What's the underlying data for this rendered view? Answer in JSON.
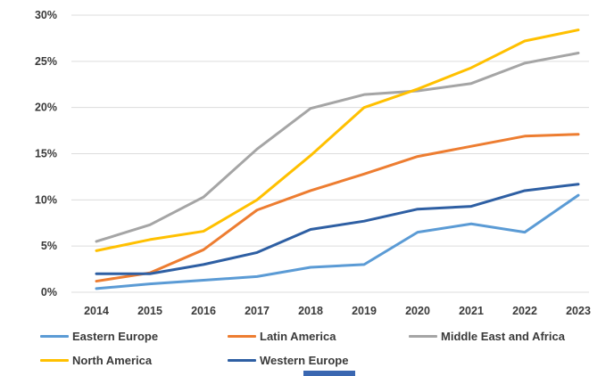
{
  "chart_data": {
    "type": "line",
    "x_labels": [
      "2014",
      "2015",
      "2016",
      "2017",
      "2018",
      "2019",
      "2020",
      "2021",
      "2022",
      "2023"
    ],
    "ylim": [
      0,
      30
    ],
    "ytick_step": 5,
    "ytick_labels": [
      "0%",
      "5%",
      "10%",
      "15%",
      "20%",
      "25%",
      "30%"
    ],
    "grid": true,
    "legend_position": "bottom",
    "series": [
      {
        "name": "Eastern Europe",
        "color": "#5B9BD5",
        "values": [
          0.4,
          0.9,
          1.3,
          1.7,
          2.7,
          3.0,
          6.5,
          7.4,
          6.5,
          10.5
        ]
      },
      {
        "name": "Latin America",
        "color": "#ED7D31",
        "values": [
          1.2,
          2.1,
          4.6,
          8.9,
          11.0,
          12.8,
          14.7,
          15.8,
          16.9,
          17.1
        ]
      },
      {
        "name": "Middle East and Africa",
        "color": "#A5A5A5",
        "values": [
          5.5,
          7.3,
          10.3,
          15.5,
          19.9,
          21.4,
          21.8,
          22.6,
          24.8,
          25.9
        ]
      },
      {
        "name": "North America",
        "color": "#FFC000",
        "values": [
          4.5,
          5.7,
          6.6,
          10.0,
          14.8,
          20.0,
          22.0,
          24.3,
          27.2,
          28.4
        ]
      },
      {
        "name": "Western Europe",
        "color": "#2E5FA3",
        "values": [
          2.0,
          2.0,
          3.0,
          4.3,
          6.8,
          7.7,
          9.0,
          9.3,
          11.0,
          11.7
        ]
      }
    ]
  },
  "decoration": {
    "bottom_fragment_color": "#3A67B1"
  }
}
